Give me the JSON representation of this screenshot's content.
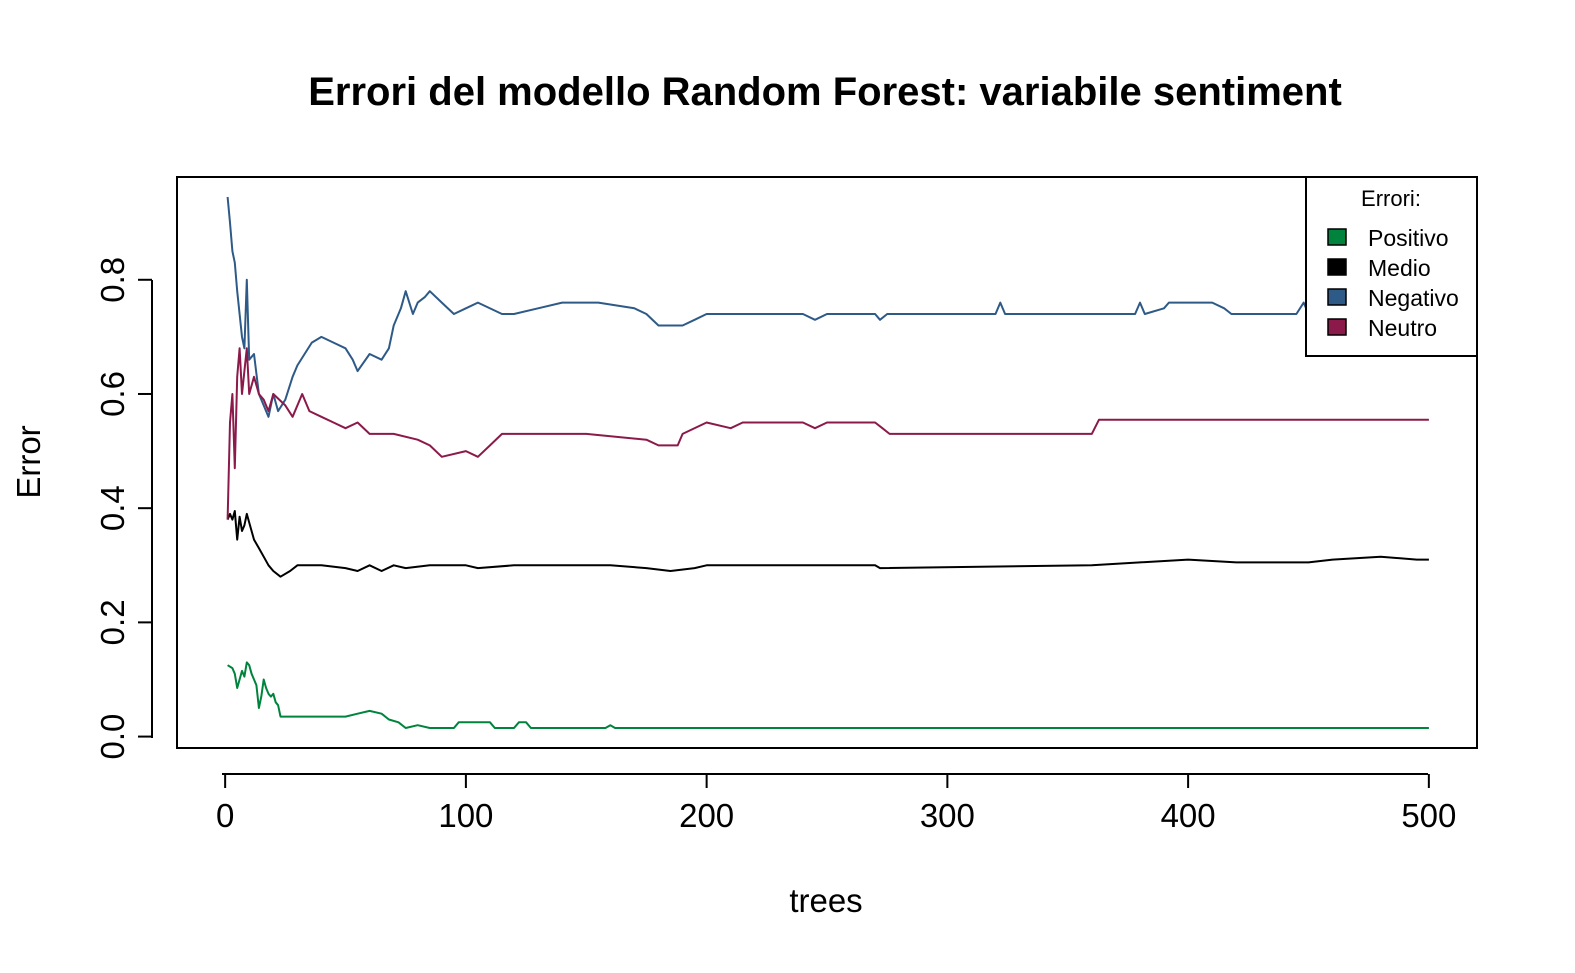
{
  "chart_data": {
    "type": "line",
    "title": "Errori del modello Random Forest: variabile sentiment",
    "xlabel": "trees",
    "ylabel": "Error",
    "xlim": [
      -20,
      520
    ],
    "ylim": [
      -0.02,
      0.98
    ],
    "x_ticks": [
      0,
      100,
      200,
      300,
      400,
      500
    ],
    "x_tick_labels": [
      "0",
      "100",
      "200",
      "300",
      "400",
      "500"
    ],
    "y_ticks": [
      0.0,
      0.2,
      0.4,
      0.6,
      0.8
    ],
    "y_tick_labels": [
      "0.0",
      "0.2",
      "0.4",
      "0.6",
      "0.8"
    ],
    "grid": false,
    "legend": {
      "title": "Errori:",
      "placement": "top-right",
      "entries": [
        {
          "label": "Positivo",
          "color": "#00843D"
        },
        {
          "label": "Medio",
          "color": "#000000"
        },
        {
          "label": "Negativo",
          "color": "#2E5A87"
        },
        {
          "label": "Neutro",
          "color": "#8B1A4A"
        }
      ]
    },
    "series": [
      {
        "key": "positivo",
        "color": "#00843D",
        "points": [
          [
            1,
            0.125
          ],
          [
            3,
            0.12
          ],
          [
            4,
            0.11
          ],
          [
            5,
            0.085
          ],
          [
            6,
            0.1
          ],
          [
            7,
            0.115
          ],
          [
            8,
            0.105
          ],
          [
            9,
            0.13
          ],
          [
            10,
            0.125
          ],
          [
            11,
            0.11
          ],
          [
            12,
            0.1
          ],
          [
            13,
            0.09
          ],
          [
            14,
            0.05
          ],
          [
            15,
            0.07
          ],
          [
            16,
            0.1
          ],
          [
            17,
            0.085
          ],
          [
            18,
            0.075
          ],
          [
            19,
            0.07
          ],
          [
            20,
            0.075
          ],
          [
            21,
            0.06
          ],
          [
            22,
            0.055
          ],
          [
            23,
            0.035
          ],
          [
            50,
            0.035
          ],
          [
            55,
            0.04
          ],
          [
            60,
            0.045
          ],
          [
            65,
            0.04
          ],
          [
            68,
            0.03
          ],
          [
            72,
            0.025
          ],
          [
            75,
            0.015
          ],
          [
            80,
            0.02
          ],
          [
            85,
            0.015
          ],
          [
            95,
            0.015
          ],
          [
            97,
            0.025
          ],
          [
            110,
            0.025
          ],
          [
            112,
            0.015
          ],
          [
            120,
            0.015
          ],
          [
            122,
            0.025
          ],
          [
            125,
            0.025
          ],
          [
            127,
            0.015
          ],
          [
            158,
            0.015
          ],
          [
            160,
            0.02
          ],
          [
            162,
            0.015
          ],
          [
            500,
            0.015
          ]
        ]
      },
      {
        "key": "medio",
        "color": "#000000",
        "points": [
          [
            1,
            0.38
          ],
          [
            2,
            0.39
          ],
          [
            3,
            0.38
          ],
          [
            4,
            0.395
          ],
          [
            5,
            0.345
          ],
          [
            6,
            0.385
          ],
          [
            7,
            0.36
          ],
          [
            8,
            0.37
          ],
          [
            9,
            0.39
          ],
          [
            10,
            0.375
          ],
          [
            12,
            0.345
          ],
          [
            14,
            0.33
          ],
          [
            16,
            0.315
          ],
          [
            18,
            0.3
          ],
          [
            20,
            0.29
          ],
          [
            23,
            0.28
          ],
          [
            27,
            0.29
          ],
          [
            30,
            0.3
          ],
          [
            40,
            0.3
          ],
          [
            50,
            0.295
          ],
          [
            55,
            0.29
          ],
          [
            60,
            0.3
          ],
          [
            65,
            0.29
          ],
          [
            70,
            0.3
          ],
          [
            75,
            0.295
          ],
          [
            85,
            0.3
          ],
          [
            100,
            0.3
          ],
          [
            105,
            0.295
          ],
          [
            120,
            0.3
          ],
          [
            160,
            0.3
          ],
          [
            175,
            0.295
          ],
          [
            185,
            0.29
          ],
          [
            195,
            0.295
          ],
          [
            200,
            0.3
          ],
          [
            220,
            0.3
          ],
          [
            270,
            0.3
          ],
          [
            272,
            0.295
          ],
          [
            360,
            0.3
          ],
          [
            380,
            0.305
          ],
          [
            400,
            0.31
          ],
          [
            420,
            0.305
          ],
          [
            450,
            0.305
          ],
          [
            460,
            0.31
          ],
          [
            480,
            0.315
          ],
          [
            495,
            0.31
          ],
          [
            500,
            0.31
          ]
        ]
      },
      {
        "key": "negativo",
        "color": "#2E5A87",
        "points": [
          [
            1,
            0.945
          ],
          [
            2,
            0.9
          ],
          [
            3,
            0.85
          ],
          [
            4,
            0.83
          ],
          [
            5,
            0.78
          ],
          [
            6,
            0.74
          ],
          [
            7,
            0.7
          ],
          [
            8,
            0.68
          ],
          [
            9,
            0.8
          ],
          [
            10,
            0.66
          ],
          [
            12,
            0.67
          ],
          [
            14,
            0.6
          ],
          [
            16,
            0.58
          ],
          [
            18,
            0.56
          ],
          [
            20,
            0.6
          ],
          [
            22,
            0.57
          ],
          [
            25,
            0.59
          ],
          [
            28,
            0.63
          ],
          [
            30,
            0.65
          ],
          [
            33,
            0.67
          ],
          [
            36,
            0.69
          ],
          [
            40,
            0.7
          ],
          [
            45,
            0.69
          ],
          [
            50,
            0.68
          ],
          [
            53,
            0.66
          ],
          [
            55,
            0.64
          ],
          [
            60,
            0.67
          ],
          [
            65,
            0.66
          ],
          [
            68,
            0.68
          ],
          [
            70,
            0.72
          ],
          [
            73,
            0.75
          ],
          [
            75,
            0.78
          ],
          [
            78,
            0.74
          ],
          [
            80,
            0.76
          ],
          [
            83,
            0.77
          ],
          [
            85,
            0.78
          ],
          [
            90,
            0.76
          ],
          [
            95,
            0.74
          ],
          [
            100,
            0.75
          ],
          [
            105,
            0.76
          ],
          [
            115,
            0.74
          ],
          [
            120,
            0.74
          ],
          [
            130,
            0.75
          ],
          [
            140,
            0.76
          ],
          [
            155,
            0.76
          ],
          [
            170,
            0.75
          ],
          [
            175,
            0.74
          ],
          [
            180,
            0.72
          ],
          [
            190,
            0.72
          ],
          [
            195,
            0.73
          ],
          [
            200,
            0.74
          ],
          [
            240,
            0.74
          ],
          [
            245,
            0.73
          ],
          [
            250,
            0.74
          ],
          [
            270,
            0.74
          ],
          [
            272,
            0.73
          ],
          [
            275,
            0.74
          ],
          [
            320,
            0.74
          ],
          [
            322,
            0.76
          ],
          [
            324,
            0.74
          ],
          [
            378,
            0.74
          ],
          [
            380,
            0.76
          ],
          [
            382,
            0.74
          ],
          [
            390,
            0.75
          ],
          [
            392,
            0.76
          ],
          [
            410,
            0.76
          ],
          [
            415,
            0.75
          ],
          [
            418,
            0.74
          ],
          [
            445,
            0.74
          ],
          [
            448,
            0.76
          ],
          [
            450,
            0.74
          ]
        ]
      },
      {
        "key": "neutro",
        "color": "#8B1A4A",
        "points": [
          [
            1,
            0.38
          ],
          [
            2,
            0.55
          ],
          [
            3,
            0.6
          ],
          [
            4,
            0.47
          ],
          [
            5,
            0.63
          ],
          [
            6,
            0.68
          ],
          [
            7,
            0.6
          ],
          [
            8,
            0.64
          ],
          [
            9,
            0.68
          ],
          [
            10,
            0.6
          ],
          [
            12,
            0.63
          ],
          [
            14,
            0.6
          ],
          [
            16,
            0.59
          ],
          [
            18,
            0.57
          ],
          [
            20,
            0.6
          ],
          [
            25,
            0.58
          ],
          [
            28,
            0.56
          ],
          [
            32,
            0.6
          ],
          [
            35,
            0.57
          ],
          [
            40,
            0.56
          ],
          [
            45,
            0.55
          ],
          [
            50,
            0.54
          ],
          [
            55,
            0.55
          ],
          [
            60,
            0.53
          ],
          [
            70,
            0.53
          ],
          [
            80,
            0.52
          ],
          [
            85,
            0.51
          ],
          [
            90,
            0.49
          ],
          [
            100,
            0.5
          ],
          [
            105,
            0.49
          ],
          [
            110,
            0.51
          ],
          [
            115,
            0.53
          ],
          [
            150,
            0.53
          ],
          [
            175,
            0.52
          ],
          [
            180,
            0.51
          ],
          [
            188,
            0.51
          ],
          [
            190,
            0.53
          ],
          [
            200,
            0.55
          ],
          [
            210,
            0.54
          ],
          [
            215,
            0.55
          ],
          [
            240,
            0.55
          ],
          [
            245,
            0.54
          ],
          [
            250,
            0.55
          ],
          [
            270,
            0.55
          ],
          [
            273,
            0.54
          ],
          [
            276,
            0.53
          ],
          [
            360,
            0.53
          ],
          [
            363,
            0.555
          ],
          [
            500,
            0.555
          ]
        ]
      }
    ]
  }
}
